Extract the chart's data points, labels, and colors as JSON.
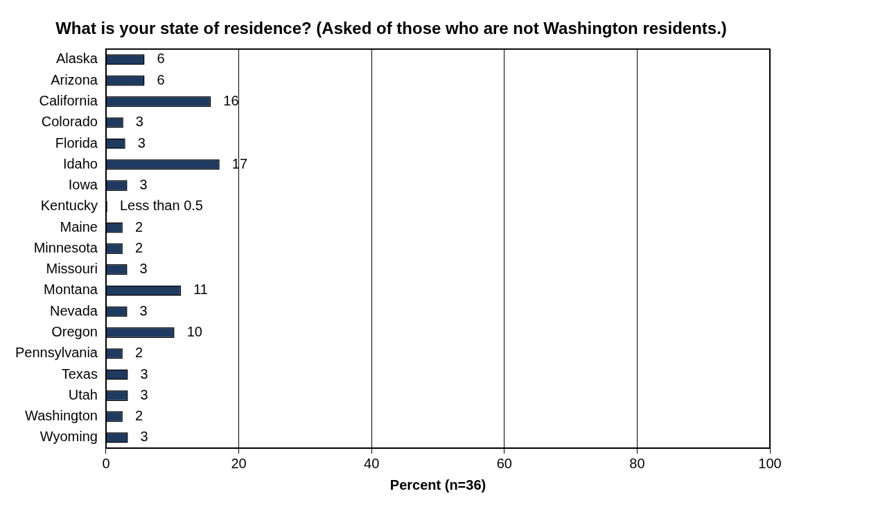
{
  "chart_data": {
    "type": "bar",
    "orientation": "horizontal",
    "title": "What is your state of residence? (Asked of those who are not Washington residents.)",
    "xlabel": "Percent (n=36)",
    "categories": [
      "Alaska",
      "Arizona",
      "California",
      "Colorado",
      "Florida",
      "Idaho",
      "Iowa",
      "Kentucky",
      "Maine",
      "Minnesota",
      "Missouri",
      "Montana",
      "Nevada",
      "Oregon",
      "Pennsylvania",
      "Texas",
      "Utah",
      "Washington",
      "Wyoming"
    ],
    "values": [
      5.8,
      5.8,
      15.8,
      2.6,
      2.9,
      17.1,
      3.2,
      0.2,
      2.5,
      2.5,
      3.2,
      11.3,
      3.2,
      10.3,
      2.5,
      3.3,
      3.3,
      2.5,
      3.3
    ],
    "value_labels": [
      "6",
      "6",
      "16",
      "3",
      "3",
      "17",
      "3",
      "Less than 0.5",
      "2",
      "2",
      "3",
      "11",
      "3",
      "10",
      "2",
      "3",
      "3",
      "2",
      "3"
    ],
    "color": "#1f3a5f",
    "xlim": [
      0,
      100
    ],
    "xticks": [
      0,
      20,
      40,
      60,
      80,
      100
    ],
    "grid": "x",
    "legend": false
  }
}
